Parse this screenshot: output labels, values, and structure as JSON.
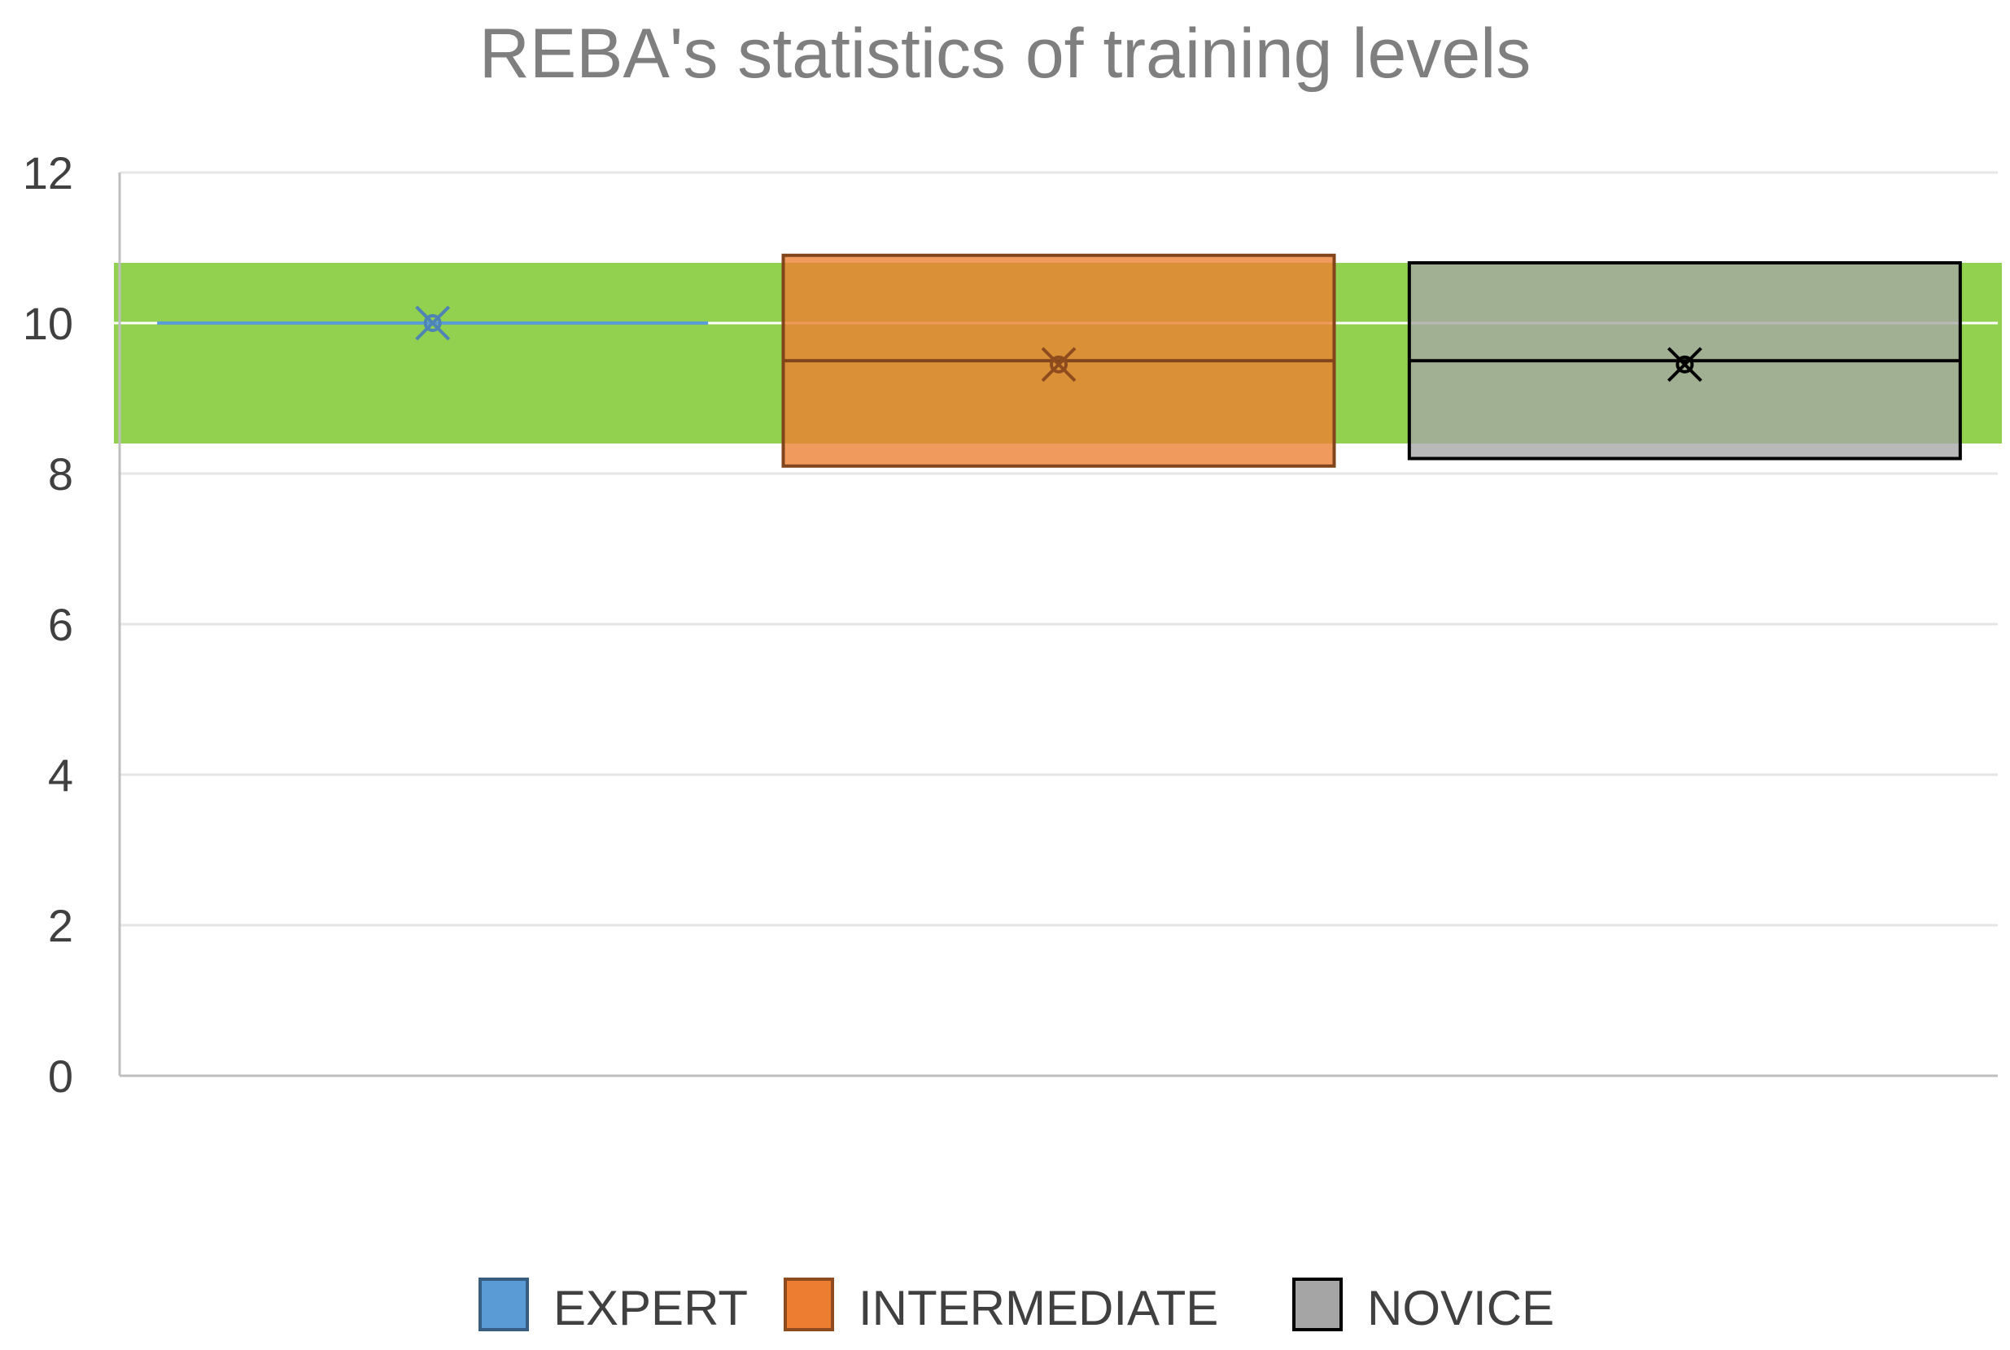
{
  "chart_data": {
    "type": "box",
    "title": "REBA's statistics of training levels",
    "xlabel": "",
    "ylabel": "",
    "ylim": [
      0,
      12
    ],
    "yticks": [
      0,
      2,
      4,
      6,
      8,
      10,
      12
    ],
    "grid": true,
    "legend_position": "bottom",
    "highlight_band": {
      "from": 8.4,
      "to": 10.8,
      "color": "#92d050"
    },
    "series": [
      {
        "name": "EXPERT",
        "color": "#5b9bd5",
        "q1": 10,
        "median": 10,
        "q3": 10,
        "mean": 10
      },
      {
        "name": "INTERMEDIATE",
        "color": "#ed7d31",
        "q1": 8.1,
        "median": 9.5,
        "q3": 10.9,
        "mean": 9.45
      },
      {
        "name": "NOVICE",
        "color": "#a5a5a5",
        "q1": 8.2,
        "median": 9.5,
        "q3": 10.8,
        "mean": 9.45
      }
    ]
  }
}
